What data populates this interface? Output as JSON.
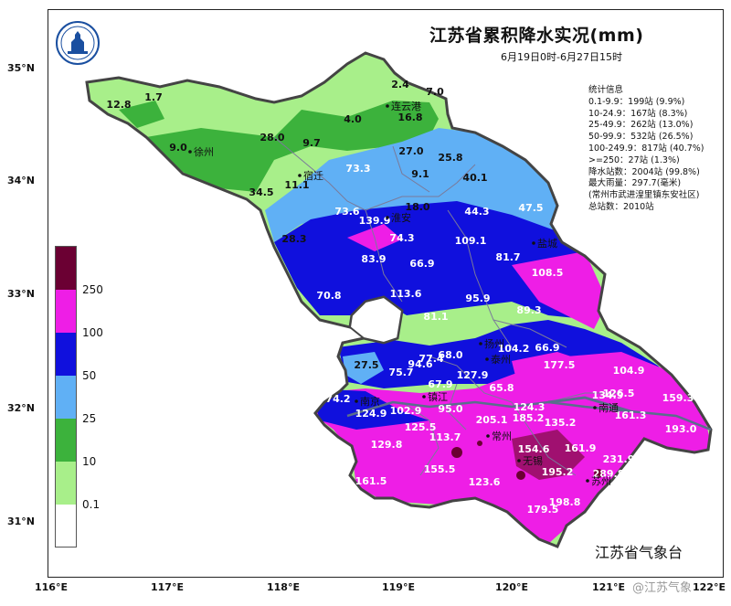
{
  "title": "江苏省累积降水实况(mm)",
  "subtitle": "6月19日0时-6月27日15时",
  "stats": {
    "heading": "统计信息",
    "lines": [
      "0.1-9.9：199站 (9.9%)",
      "10-24.9：167站 (8.3%)",
      "25-49.9：262站 (13.0%)",
      "50-99.9：532站 (26.5%)",
      "100-249.9：817站 (40.7%)",
      ">=250：27站 (1.3%)",
      "降水站数：2004站 (99.8%)",
      "最大雨量：297.7(毫米)",
      "(常州市武进湟里镇东安社区)",
      "总站数：2010站"
    ]
  },
  "source": "江苏省气象台",
  "watermark": "@江苏气象",
  "axes": {
    "lat": [
      {
        "label": "35°N"
      },
      {
        "label": "34°N"
      },
      {
        "label": "33°N"
      },
      {
        "label": "32°N"
      },
      {
        "label": "31°N"
      }
    ],
    "lon": [
      {
        "label": "116°E"
      },
      {
        "label": "117°E"
      },
      {
        "label": "118°E"
      },
      {
        "label": "119°E"
      },
      {
        "label": "120°E"
      },
      {
        "label": "121°E"
      },
      {
        "label": "122°E"
      }
    ]
  },
  "legend": {
    "colors": [
      "#6b0033",
      "#ee1ee6",
      "#1010dd",
      "#60b0f5",
      "#3cb23c",
      "#a8ef8a",
      "#ffffff"
    ],
    "labels": [
      "250",
      "100",
      "50",
      "25",
      "10",
      "0.1"
    ]
  },
  "cities": [
    {
      "name": "徐州"
    },
    {
      "name": "宿迁"
    },
    {
      "name": "连云港"
    },
    {
      "name": "淮安"
    },
    {
      "name": "盐城"
    },
    {
      "name": "扬州"
    },
    {
      "name": "泰州"
    },
    {
      "name": "南京"
    },
    {
      "name": "镇江"
    },
    {
      "name": "常州"
    },
    {
      "name": "南通"
    },
    {
      "name": "无锡"
    },
    {
      "name": "苏州"
    }
  ],
  "values": [
    {
      "v": "12.8"
    },
    {
      "v": "1.7"
    },
    {
      "v": "2.4"
    },
    {
      "v": "7.0"
    },
    {
      "v": "16.8"
    },
    {
      "v": "4.0"
    },
    {
      "v": "28.0"
    },
    {
      "v": "9.7"
    },
    {
      "v": "9.0"
    },
    {
      "v": "27.0"
    },
    {
      "v": "25.8"
    },
    {
      "v": "73.3"
    },
    {
      "v": "9.1"
    },
    {
      "v": "40.1"
    },
    {
      "v": "11.1"
    },
    {
      "v": "34.5"
    },
    {
      "v": "73.6"
    },
    {
      "v": "18.0"
    },
    {
      "v": "44.3"
    },
    {
      "v": "47.5"
    },
    {
      "v": "139.9"
    },
    {
      "v": "74.3"
    },
    {
      "v": "28.3"
    },
    {
      "v": "109.1"
    },
    {
      "v": "83.9"
    },
    {
      "v": "66.9"
    },
    {
      "v": "81.7"
    },
    {
      "v": "108.5"
    },
    {
      "v": "70.8"
    },
    {
      "v": "113.6"
    },
    {
      "v": "95.9"
    },
    {
      "v": "89.3"
    },
    {
      "v": "81.1"
    },
    {
      "v": "104.2"
    },
    {
      "v": "66.9"
    },
    {
      "v": "77.4"
    },
    {
      "v": "68.0"
    },
    {
      "v": "27.5"
    },
    {
      "v": "75.7"
    },
    {
      "v": "94.6"
    },
    {
      "v": "127.9"
    },
    {
      "v": "177.5"
    },
    {
      "v": "104.9"
    },
    {
      "v": "67.9"
    },
    {
      "v": "65.8"
    },
    {
      "v": "134.9"
    },
    {
      "v": "126.5"
    },
    {
      "v": "159.3"
    },
    {
      "v": "74.2"
    },
    {
      "v": "124.9"
    },
    {
      "v": "102.9"
    },
    {
      "v": "95.0"
    },
    {
      "v": "124.3"
    },
    {
      "v": "161.3"
    },
    {
      "v": "205.1"
    },
    {
      "v": "185.2"
    },
    {
      "v": "135.2"
    },
    {
      "v": "193.0"
    },
    {
      "v": "125.5"
    },
    {
      "v": "113.7"
    },
    {
      "v": "129.8"
    },
    {
      "v": "161.9"
    },
    {
      "v": "154.6"
    },
    {
      "v": "231.9"
    },
    {
      "v": "155.5"
    },
    {
      "v": "195.2"
    },
    {
      "v": "289.8"
    },
    {
      "v": "161.5"
    },
    {
      "v": "123.6"
    },
    {
      "v": "198.8"
    },
    {
      "v": "179.5"
    }
  ]
}
